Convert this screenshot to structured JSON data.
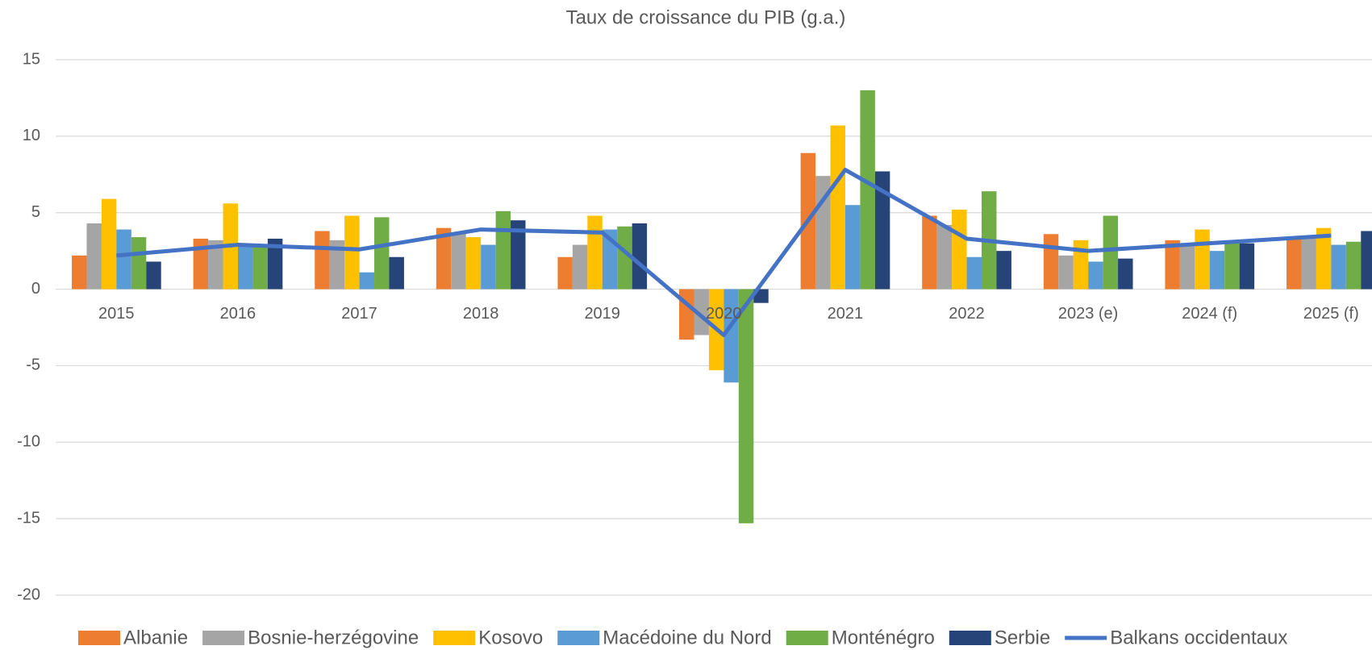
{
  "chart_data": {
    "type": "bar",
    "title": "Taux de croissance du PIB (g.a.)",
    "categories": [
      "2015",
      "2016",
      "2017",
      "2018",
      "2019",
      "2020",
      "2021",
      "2022",
      "2023 (e)",
      "2024 (f)",
      "2025 (f)"
    ],
    "series": [
      {
        "name": "Albanie",
        "color": "#ed7d31",
        "values": [
          2.2,
          3.3,
          3.8,
          4.0,
          2.1,
          -3.3,
          8.9,
          4.8,
          3.6,
          3.2,
          3.3
        ]
      },
      {
        "name": "Bosnie-herzégovine",
        "color": "#a5a5a5",
        "values": [
          4.3,
          3.2,
          3.2,
          3.7,
          2.9,
          -3.0,
          7.4,
          4.2,
          2.2,
          2.8,
          3.4
        ]
      },
      {
        "name": "Kosovo",
        "color": "#ffc000",
        "values": [
          5.9,
          5.6,
          4.8,
          3.4,
          4.8,
          -5.3,
          10.7,
          5.2,
          3.2,
          3.9,
          4.0
        ]
      },
      {
        "name": "Macédoine du Nord",
        "color": "#5b9bd5",
        "values": [
          3.9,
          2.8,
          1.1,
          2.9,
          3.9,
          -6.1,
          5.5,
          2.1,
          1.8,
          2.5,
          2.9
        ]
      },
      {
        "name": "Monténégro",
        "color": "#70ad47",
        "values": [
          3.4,
          2.9,
          4.7,
          5.1,
          4.1,
          -15.3,
          13.0,
          6.4,
          4.8,
          3.0,
          3.1
        ]
      },
      {
        "name": "Serbie",
        "color": "#264478",
        "values": [
          1.8,
          3.3,
          2.1,
          4.5,
          4.3,
          -0.9,
          7.7,
          2.5,
          2.0,
          3.0,
          3.8
        ]
      },
      {
        "name": "Balkans occidentaux",
        "color": "#4472c4",
        "type": "line",
        "values": [
          2.2,
          2.9,
          2.6,
          3.9,
          3.7,
          -3.0,
          7.8,
          3.3,
          2.5,
          3.0,
          3.5
        ]
      }
    ],
    "ylim": [
      -20,
      15
    ],
    "yticks": [
      -20,
      -15,
      -10,
      -5,
      0,
      5,
      10,
      15
    ],
    "grid": true,
    "legend": "bottom"
  }
}
